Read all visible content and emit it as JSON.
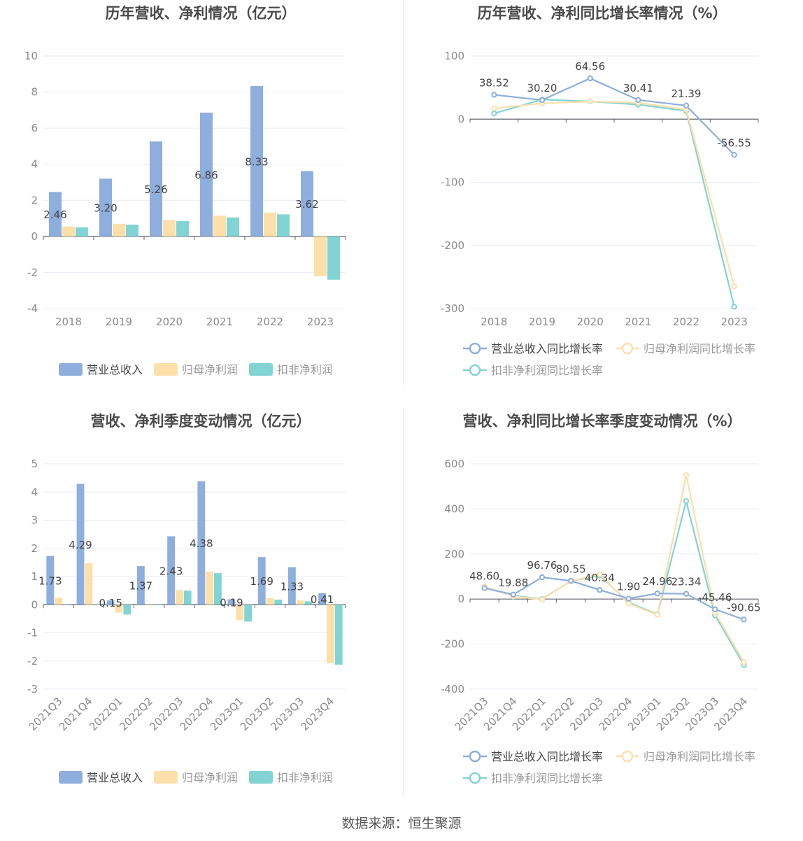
{
  "colors": {
    "revenue": "#8eaedd",
    "netprofit": "#fddfa9",
    "deducted": "#82d4d4",
    "grid": "#e8ebf4",
    "axis": "#5f6069",
    "tick": "#8a8a8a",
    "title": "#4a4a4a"
  },
  "source": "数据来源：恒生聚源",
  "chart_data": [
    {
      "type": "bar",
      "title": "历年营收、净利情况（亿元）",
      "categories": [
        "2018",
        "2019",
        "2020",
        "2021",
        "2022",
        "2023"
      ],
      "ylim": [
        -4,
        10
      ],
      "yticks": [
        10,
        8,
        6,
        4,
        2,
        0,
        -2,
        -4
      ],
      "series": [
        {
          "name": "营业总收入",
          "values": [
            2.46,
            3.2,
            5.26,
            6.86,
            8.33,
            3.62
          ],
          "labels": [
            "2.46",
            "3.20",
            "5.26",
            "6.86",
            "8.33",
            "3.62"
          ]
        },
        {
          "name": "归母净利润",
          "values": [
            0.55,
            0.7,
            0.9,
            1.15,
            1.32,
            -2.2
          ]
        },
        {
          "name": "扣非净利润",
          "values": [
            0.5,
            0.65,
            0.85,
            1.05,
            1.22,
            -2.4
          ]
        }
      ]
    },
    {
      "type": "line",
      "title": "历年营收、净利同比增长率情况（%）",
      "categories": [
        "2018",
        "2019",
        "2020",
        "2021",
        "2022",
        "2023"
      ],
      "ylim": [
        -300,
        100
      ],
      "yticks": [
        100,
        0,
        -100,
        -200,
        -300
      ],
      "series": [
        {
          "name": "营业总收入同比增长率",
          "values": [
            38.52,
            30.2,
            64.56,
            30.41,
            21.39,
            -56.55
          ],
          "labels": [
            "38.52",
            "30.20",
            "64.56",
            "30.41",
            "21.39",
            "-56.55"
          ]
        },
        {
          "name": "归母净利润同比增长率",
          "values": [
            17,
            25,
            28,
            26,
            15,
            -265
          ]
        },
        {
          "name": "扣非净利润同比增长率",
          "values": [
            9,
            31,
            28,
            23,
            13,
            -297
          ]
        }
      ]
    },
    {
      "type": "bar",
      "title": "营收、净利季度变动情况（亿元）",
      "categories": [
        "2021Q3",
        "2021Q4",
        "2022Q1",
        "2022Q2",
        "2022Q3",
        "2022Q4",
        "2023Q1",
        "2023Q2",
        "2023Q3",
        "2023Q4"
      ],
      "ylim": [
        -3,
        5
      ],
      "yticks": [
        5,
        4,
        3,
        2,
        1,
        0,
        -1,
        -2,
        -3
      ],
      "series": [
        {
          "name": "营业总收入",
          "values": [
            1.73,
            4.29,
            0.15,
            1.37,
            2.43,
            4.38,
            0.19,
            1.69,
            1.33,
            0.41
          ],
          "labels": [
            "1.73",
            "4.29",
            "0.15",
            "1.37",
            "2.43",
            "4.38",
            "0.19",
            "1.69",
            "1.33",
            "0.41"
          ]
        },
        {
          "name": "归母净利润",
          "values": [
            0.25,
            1.47,
            -0.28,
            0.03,
            0.52,
            1.18,
            -0.55,
            0.23,
            0.15,
            -2.08
          ]
        },
        {
          "name": "扣非净利润",
          "values": [
            0.0,
            0.0,
            -0.35,
            0.02,
            0.5,
            1.12,
            -0.6,
            0.18,
            0.12,
            -2.13
          ]
        }
      ]
    },
    {
      "type": "line",
      "title": "营收、净利同比增长率季度变动情况（%）",
      "categories": [
        "2021Q3",
        "2021Q4",
        "2022Q1",
        "2022Q2",
        "2022Q3",
        "2022Q4",
        "2023Q1",
        "2023Q2",
        "2023Q3",
        "2023Q4"
      ],
      "ylim": [
        -400,
        600
      ],
      "yticks": [
        600,
        400,
        200,
        0,
        -200,
        -400
      ],
      "series": [
        {
          "name": "营业总收入同比增长率",
          "values": [
            48.6,
            19.88,
            96.76,
            80.55,
            40.34,
            1.9,
            24.96,
            23.34,
            -45.46,
            -90.65
          ],
          "labels": [
            "48.60",
            "19.88",
            "96.76",
            "80.55",
            "40.34",
            "1.90",
            "24.96",
            "23.34",
            "-45.46",
            "-90.65"
          ]
        },
        {
          "name": "归母净利润同比增长率",
          "values": [
            55,
            12,
            -2,
            80,
            110,
            -20,
            -70,
            550,
            -60,
            -280
          ]
        },
        {
          "name": "扣非净利润同比增长率",
          "values": [
            52,
            15,
            0,
            80,
            105,
            -15,
            -68,
            435,
            -72,
            -292
          ]
        }
      ]
    }
  ]
}
